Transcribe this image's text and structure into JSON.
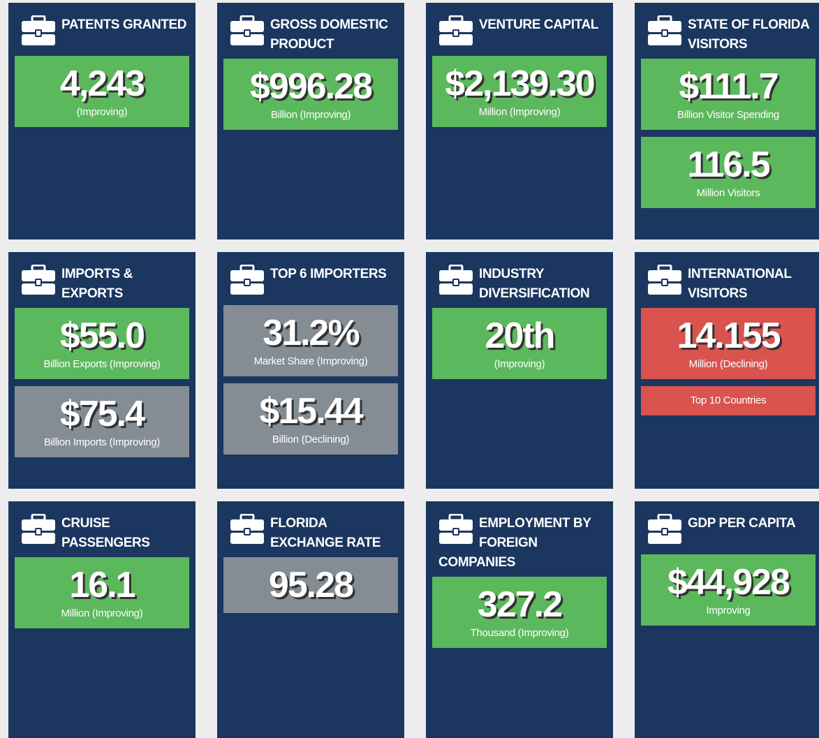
{
  "cards": [
    {
      "title": "PATENTS GRANTED",
      "stats": [
        {
          "value": "4,243",
          "label": "(Improving)",
          "color": "#5cb85c"
        }
      ]
    },
    {
      "title": "GROSS DOMESTIC PRODUCT",
      "stats": [
        {
          "value": "$996.28",
          "label": "Billion (Improving)",
          "color": "#5cb85c"
        }
      ]
    },
    {
      "title": "VENTURE CAPITAL",
      "stats": [
        {
          "value": "$2,139.30",
          "label": "Million (Improving)",
          "color": "#5cb85c"
        }
      ]
    },
    {
      "title": "STATE OF FLORIDA VISITORS",
      "stats": [
        {
          "value": "$111.7",
          "label": "Billion Visitor Spending",
          "color": "#5cb85c"
        },
        {
          "value": "116.5",
          "label": "Million Visitors",
          "color": "#5cb85c"
        }
      ]
    },
    {
      "title": "IMPORTS & EXPORTS",
      "stats": [
        {
          "value": "$55.0",
          "label": "Billion Exports (Improving)",
          "color": "#5cb85c"
        },
        {
          "value": "$75.4",
          "label": "Billion Imports (Improving)",
          "color": "#848c94"
        }
      ]
    },
    {
      "title": "TOP 6 IMPORTERS",
      "stats": [
        {
          "value": "31.2%",
          "label": "Market Share (Improving)",
          "color": "#848c94"
        },
        {
          "value": "$15.44",
          "label": "Billion (Declining)",
          "color": "#848c94"
        }
      ]
    },
    {
      "title": "INDUSTRY DIVERSIFICATION",
      "stats": [
        {
          "value": "20th",
          "label": "(Improving)",
          "color": "#5cb85c"
        }
      ]
    },
    {
      "title": "INTERNATIONAL VISITORS",
      "stats": [
        {
          "value": "14.155",
          "label": "Million (Declining)",
          "color": "#d9534f"
        },
        {
          "label": "Top 10 Countries",
          "color": "#d9534f"
        }
      ]
    },
    {
      "title": "CRUISE PASSENGERS",
      "stats": [
        {
          "value": "16.1",
          "label": "Million (Improving)",
          "color": "#5cb85c"
        }
      ]
    },
    {
      "title": "FLORIDA EXCHANGE RATE",
      "stats": [
        {
          "value": "95.28",
          "color": "#848c94"
        }
      ]
    },
    {
      "title": "EMPLOYMENT BY FOREIGN COMPANIES",
      "stats": [
        {
          "value": "327.2",
          "label": "Thousand (Improving)",
          "color": "#5cb85c"
        }
      ]
    },
    {
      "title": "GDP PER CAPITA",
      "stats": [
        {
          "value": "$44,928",
          "label": "Improving",
          "color": "#5cb85c"
        }
      ]
    }
  ]
}
